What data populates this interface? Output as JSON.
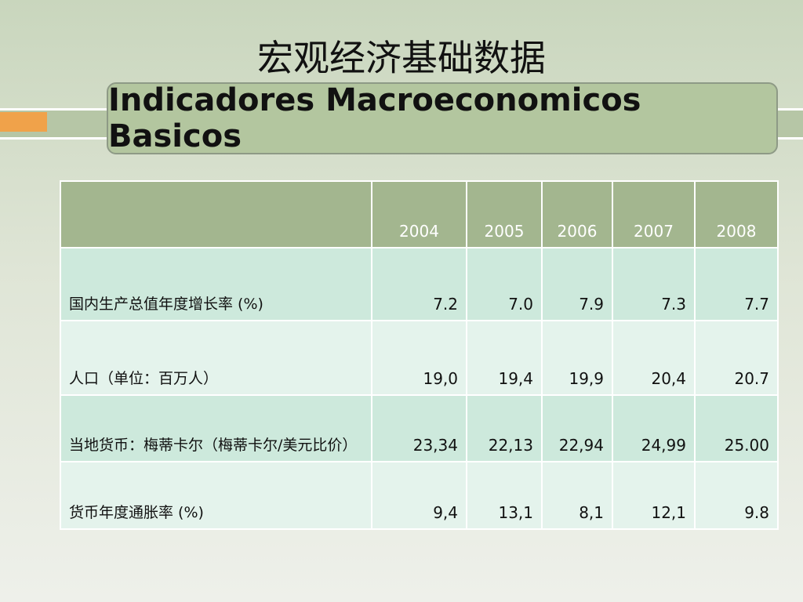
{
  "title": "宏观经济基础数据",
  "subtitle": "Indicadores Macroeconomicos Basicos",
  "table": {
    "columns": [
      "2004",
      "2005",
      "2006",
      "2007",
      "2008"
    ],
    "rows": [
      {
        "label": "国内生产总值年度增长率 (%)",
        "values": [
          "7.2",
          "7.0",
          "7.9",
          "7.3",
          "7.7"
        ]
      },
      {
        "label": "人口（单位：百万人）",
        "values": [
          "19,0",
          "19,4",
          "19,9",
          "20,4",
          "20.7"
        ]
      },
      {
        "label": "当地货币：梅蒂卡尔（梅蒂卡尔/美元比价）",
        "values": [
          "23,34",
          "22,13",
          "22,94",
          "24,99",
          "25.00"
        ]
      },
      {
        "label": "货币年度通胀率 (%)",
        "values": [
          "9,4",
          "13,1",
          "8,1",
          "12,1",
          "9.8"
        ]
      }
    ]
  }
}
